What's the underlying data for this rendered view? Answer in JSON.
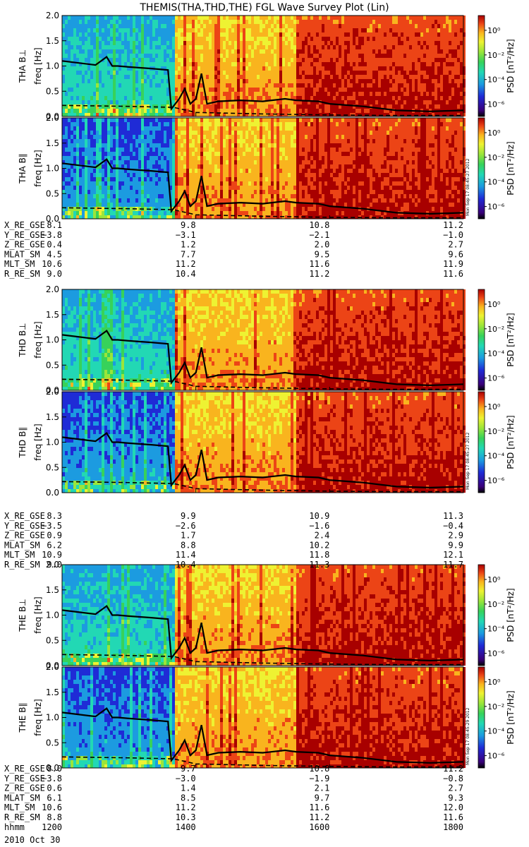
{
  "title": "THEMIS(THA,THD,THE) FGL Wave Survey Plot (Lin)",
  "stamp": "Mon Sep 17 08:45:27 2012",
  "stamps": [
    "Mon Sep 17 08:45:27 2012",
    "Mon Sep 17 08:45:27 2012",
    "Mon Sep 17 08:45:29 2012"
  ],
  "date_label": "2010 Oct 30",
  "x_tick_times": [
    "1200",
    "1400",
    "1600",
    "1800"
  ],
  "colorbar": {
    "label": "PSD [nT²/Hz]",
    "tick_labels": [
      "10⁰",
      "10⁻²",
      "10⁻⁴",
      "10⁻⁶"
    ],
    "tick_exponents": [
      0,
      -2,
      -4,
      -6
    ],
    "range_exponent": [
      -7,
      1.2
    ],
    "colors": [
      "#000000",
      "#3a007a",
      "#1f2bd6",
      "#1c9be0",
      "#22d8b4",
      "#37d25a",
      "#9be53a",
      "#eef232",
      "#f9b41e",
      "#ec4416",
      "#a80000"
    ]
  },
  "panels": [
    {
      "ylabel": "THA B⊥",
      "axis_label": "freq [Hz]"
    },
    {
      "ylabel": "THA B∥",
      "axis_label": "freq [Hz]"
    },
    {
      "ylabel": "THD B⊥",
      "axis_label": "freq [Hz]"
    },
    {
      "ylabel": "THD B∥",
      "axis_label": "freq [Hz]"
    },
    {
      "ylabel": "THE B⊥",
      "axis_label": "freq [Hz]"
    },
    {
      "ylabel": "THE B∥",
      "axis_label": "freq [Hz]"
    }
  ],
  "ephemeris": [
    {
      "rows": [
        {
          "label": "X_RE_GSE",
          "values": [
            "8.1",
            "9.8",
            "10.8",
            "11.2"
          ]
        },
        {
          "label": "Y_RE_GSE",
          "values": [
            "−3.8",
            "−3.1",
            "−2.1",
            "−1.0"
          ]
        },
        {
          "label": "Z_RE_GSE",
          "values": [
            "0.4",
            "1.2",
            "2.0",
            "2.7"
          ]
        },
        {
          "label": "MLAT_SM",
          "values": [
            "4.5",
            "7.7",
            "9.5",
            "9.6"
          ]
        },
        {
          "label": "MLT_SM",
          "values": [
            "10.6",
            "11.2",
            "11.6",
            "11.9"
          ]
        },
        {
          "label": "R_RE_SM",
          "values": [
            "9.0",
            "10.4",
            "11.2",
            "11.6"
          ]
        }
      ]
    },
    {
      "rows": [
        {
          "label": "X_RE_GSE",
          "values": [
            "8.3",
            "9.9",
            "10.9",
            "11.3"
          ]
        },
        {
          "label": "Y_RE_GSE",
          "values": [
            "−3.5",
            "−2.6",
            "−1.6",
            "−0.4"
          ]
        },
        {
          "label": "Z_RE_GSE",
          "values": [
            "0.9",
            "1.7",
            "2.4",
            "2.9"
          ]
        },
        {
          "label": "MLAT_SM",
          "values": [
            "6.2",
            "8.8",
            "10.2",
            "9.9"
          ]
        },
        {
          "label": "MLT_SM",
          "values": [
            "10.9",
            "11.4",
            "11.8",
            "12.1"
          ]
        },
        {
          "label": "R_RE_SM",
          "values": [
            "9.0",
            "10.4",
            "11.3",
            "11.7"
          ]
        }
      ]
    },
    {
      "rows": [
        {
          "label": "X_RE_GSE",
          "values": [
            "8.0",
            "9.7",
            "10.8",
            "11.2"
          ]
        },
        {
          "label": "Y_RE_GSE",
          "values": [
            "−3.8",
            "−3.0",
            "−1.9",
            "−0.8"
          ]
        },
        {
          "label": "Z_RE_GSE",
          "values": [
            "0.6",
            "1.4",
            "2.1",
            "2.7"
          ]
        },
        {
          "label": "MLAT_SM",
          "values": [
            "6.1",
            "8.5",
            "9.7",
            "9.3"
          ]
        },
        {
          "label": "MLT_SM",
          "values": [
            "10.6",
            "11.2",
            "11.6",
            "12.0"
          ]
        },
        {
          "label": "R_RE_SM",
          "values": [
            "8.8",
            "10.3",
            "11.2",
            "11.6"
          ]
        },
        {
          "label": "hhmm",
          "values": [
            "1200",
            "1400",
            "1600",
            "1800"
          ]
        }
      ]
    }
  ],
  "chart_data": {
    "type": "heatmap",
    "title": "THEMIS(THA,THD,THE) FGL Wave Survey Plot (Lin)",
    "x_unit": "UT hhmm, 2010 Oct 30",
    "xlim": [
      "1200",
      "1800"
    ],
    "ylim": [
      0,
      2.0
    ],
    "y_ticks": [
      "0.0",
      "0.5",
      "1.0",
      "1.5",
      "2.0"
    ],
    "y_tick_values": [
      0,
      0.5,
      1.0,
      1.5,
      2.0
    ],
    "spectral_regimes_log10_psd": [
      {
        "from": "1200",
        "to": "1340",
        "level": -3.5
      },
      {
        "from": "1340",
        "to": "1530",
        "level": -0.3
      },
      {
        "from": "1530",
        "to": "1800",
        "level": 0.8
      }
    ],
    "curve_fce_hz": {
      "x": [
        "1200",
        "1230",
        "1240",
        "1245",
        "1250",
        "1300",
        "1320",
        "1335",
        "1338",
        "1345",
        "1350",
        "1355",
        "1400",
        "1405",
        "1410",
        "1420",
        "1440",
        "1500",
        "1520",
        "1530",
        "1550",
        "1600",
        "1630",
        "1700",
        "1730",
        "1800"
      ],
      "y": [
        1.1,
        1.02,
        1.18,
        1.0,
        1.0,
        0.98,
        0.95,
        0.92,
        0.15,
        0.35,
        0.55,
        0.25,
        0.35,
        0.85,
        0.25,
        0.3,
        0.32,
        0.3,
        0.35,
        0.32,
        0.3,
        0.25,
        0.2,
        0.12,
        0.1,
        0.12
      ]
    },
    "curve_dashed_hz": {
      "x": [
        "1200",
        "1300",
        "1340",
        "1400",
        "1500",
        "1600",
        "1700",
        "1800"
      ],
      "y": [
        0.22,
        0.2,
        0.18,
        0.08,
        0.05,
        0.03,
        0.02,
        0.02
      ]
    }
  }
}
